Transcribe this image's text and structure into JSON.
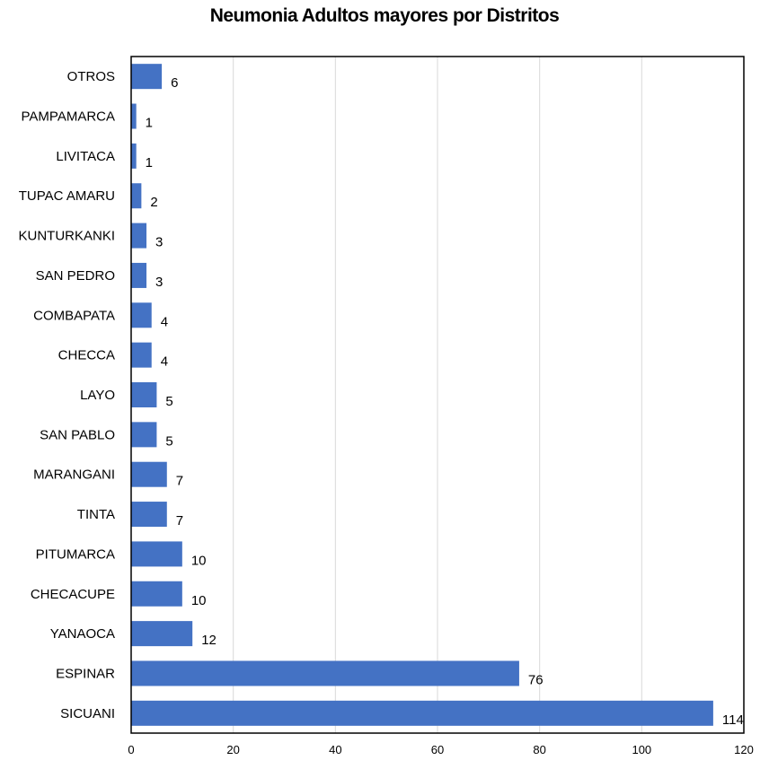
{
  "chart_data": {
    "type": "bar",
    "orientation": "horizontal",
    "title": "Neumonia Adultos mayores por Distritos",
    "xlabel": "",
    "ylabel": "",
    "categories": [
      "OTROS",
      "PAMPAMARCA",
      "LIVITACA",
      "TUPAC AMARU",
      "KUNTURKANKI",
      "SAN PEDRO",
      "COMBAPATA",
      "CHECCA",
      "LAYO",
      "SAN PABLO",
      "MARANGANI",
      "TINTA",
      "PITUMARCA",
      "CHECACUPE",
      "YANAOCA",
      "ESPINAR",
      "SICUANI"
    ],
    "values": [
      6,
      1,
      1,
      2,
      3,
      3,
      4,
      4,
      5,
      5,
      7,
      7,
      10,
      10,
      12,
      76,
      114
    ],
    "xlim": [
      0,
      120
    ],
    "xticks": [
      0,
      20,
      40,
      60,
      80,
      100,
      120
    ],
    "grid": "vertical",
    "bar_color": "#4472C4",
    "data_labels": true
  }
}
